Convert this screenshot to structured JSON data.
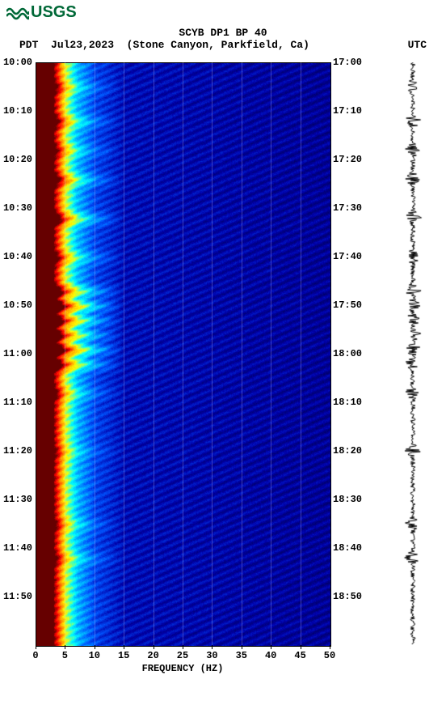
{
  "logo_text": "USGS",
  "title": "SCYB DP1 BP 40",
  "left_tz": "PDT",
  "date": "Jul23,2023",
  "location": "(Stone Canyon, Parkfield, Ca)",
  "right_tz": "UTC",
  "xlabel": "FREQUENCY (HZ)",
  "colors": {
    "logo": "#006837",
    "text": "#000000",
    "bg": "#ffffff",
    "cold": "#0000aa",
    "mid": "#0055ff",
    "warm": "#00ffff",
    "hot": "#ffff00",
    "hotter": "#ff8800",
    "hottest": "#ff0000",
    "darkred": "#660000",
    "grid": "rgba(200,200,255,0.3)",
    "wave": "#000000"
  },
  "spectrogram": {
    "type": "heatmap",
    "x_range": [
      0,
      50
    ],
    "x_ticks": [
      0,
      5,
      10,
      15,
      20,
      25,
      30,
      35,
      40,
      45,
      50
    ],
    "y_left_start": "10:00",
    "y_left_ticks": [
      "10:00",
      "10:10",
      "10:20",
      "10:30",
      "10:40",
      "10:50",
      "11:00",
      "11:10",
      "11:20",
      "11:30",
      "11:40",
      "11:50"
    ],
    "y_right_ticks": [
      "17:00",
      "17:10",
      "17:20",
      "17:30",
      "17:40",
      "17:50",
      "18:00",
      "18:10",
      "18:20",
      "18:30",
      "18:40",
      "18:50"
    ],
    "y_tick_minutes": [
      0,
      10,
      20,
      30,
      40,
      50,
      60,
      70,
      80,
      90,
      100,
      110
    ],
    "y_total_minutes": 120,
    "intensity_profile_hz": [
      0,
      1,
      2,
      3,
      4,
      5,
      7,
      10,
      15,
      50
    ],
    "intensity_profile_val": [
      1.0,
      1.0,
      0.95,
      0.9,
      0.7,
      0.5,
      0.3,
      0.15,
      0.05,
      0.0
    ],
    "event_bands": [
      {
        "minute": 5,
        "strength": 0.3
      },
      {
        "minute": 12,
        "strength": 0.4
      },
      {
        "minute": 18,
        "strength": 0.3
      },
      {
        "minute": 24,
        "strength": 0.5
      },
      {
        "minute": 32,
        "strength": 0.6
      },
      {
        "minute": 40,
        "strength": 0.4
      },
      {
        "minute": 47,
        "strength": 0.7
      },
      {
        "minute": 50,
        "strength": 0.9
      },
      {
        "minute": 53,
        "strength": 0.8
      },
      {
        "minute": 56,
        "strength": 0.7
      },
      {
        "minute": 59,
        "strength": 0.95
      },
      {
        "minute": 62,
        "strength": 0.7
      },
      {
        "minute": 68,
        "strength": 0.3
      },
      {
        "minute": 80,
        "strength": 0.2
      },
      {
        "minute": 95,
        "strength": 0.25
      },
      {
        "minute": 102,
        "strength": 0.3
      }
    ]
  },
  "waveform": {
    "color": "#000000",
    "base_amp": 3,
    "spikes": [
      5,
      12,
      18,
      24,
      32,
      40,
      47,
      50,
      53,
      56,
      59,
      62,
      68,
      80,
      95,
      102
    ]
  }
}
